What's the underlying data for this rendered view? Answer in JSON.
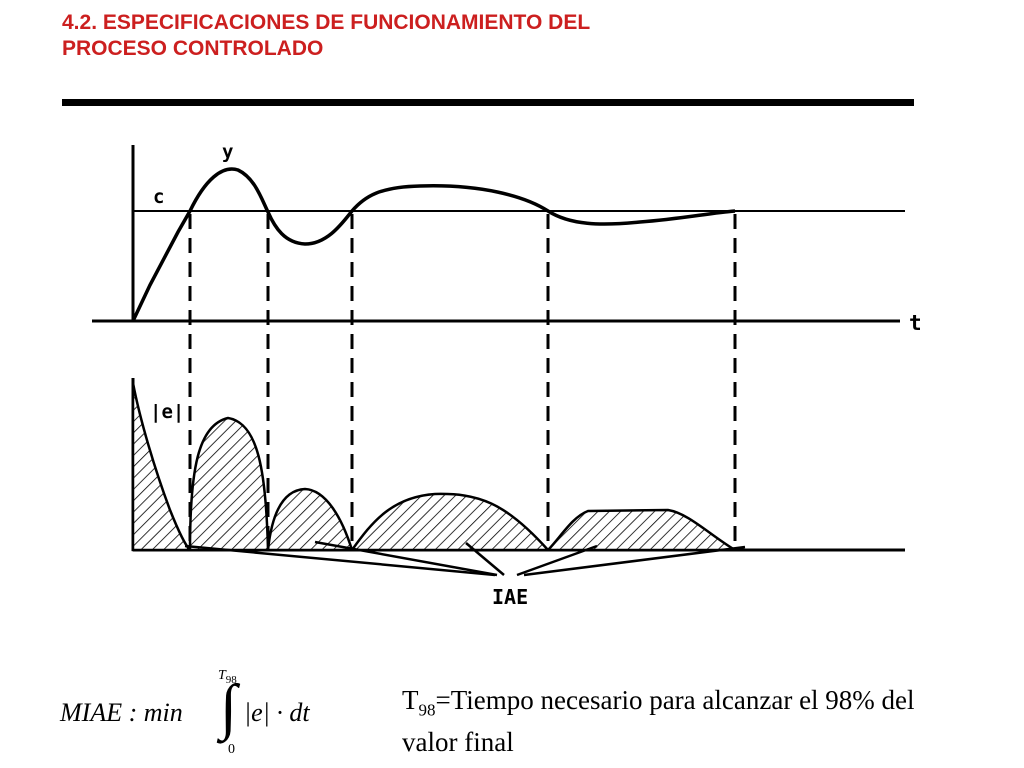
{
  "slide": {
    "title_line1": "4.2. ESPECIFICACIONES DE FUNCIONAMIENTO DEL",
    "title_line2": "PROCESO CONTROLADO",
    "title_color": "#cc1f1f"
  },
  "diagram": {
    "label_y": "y",
    "label_c": "c",
    "label_t": "t",
    "label_e": "|e|",
    "label_iae": "IAE"
  },
  "formula": {
    "lhs": "MIAE : min",
    "upper_base": "T",
    "upper_sub": "98",
    "lower": "0",
    "integrand": "|e| · dt"
  },
  "note": {
    "t": "T",
    "sub": "98",
    "text": "=Tiempo necesario para alcanzar el 98% del valor final"
  }
}
